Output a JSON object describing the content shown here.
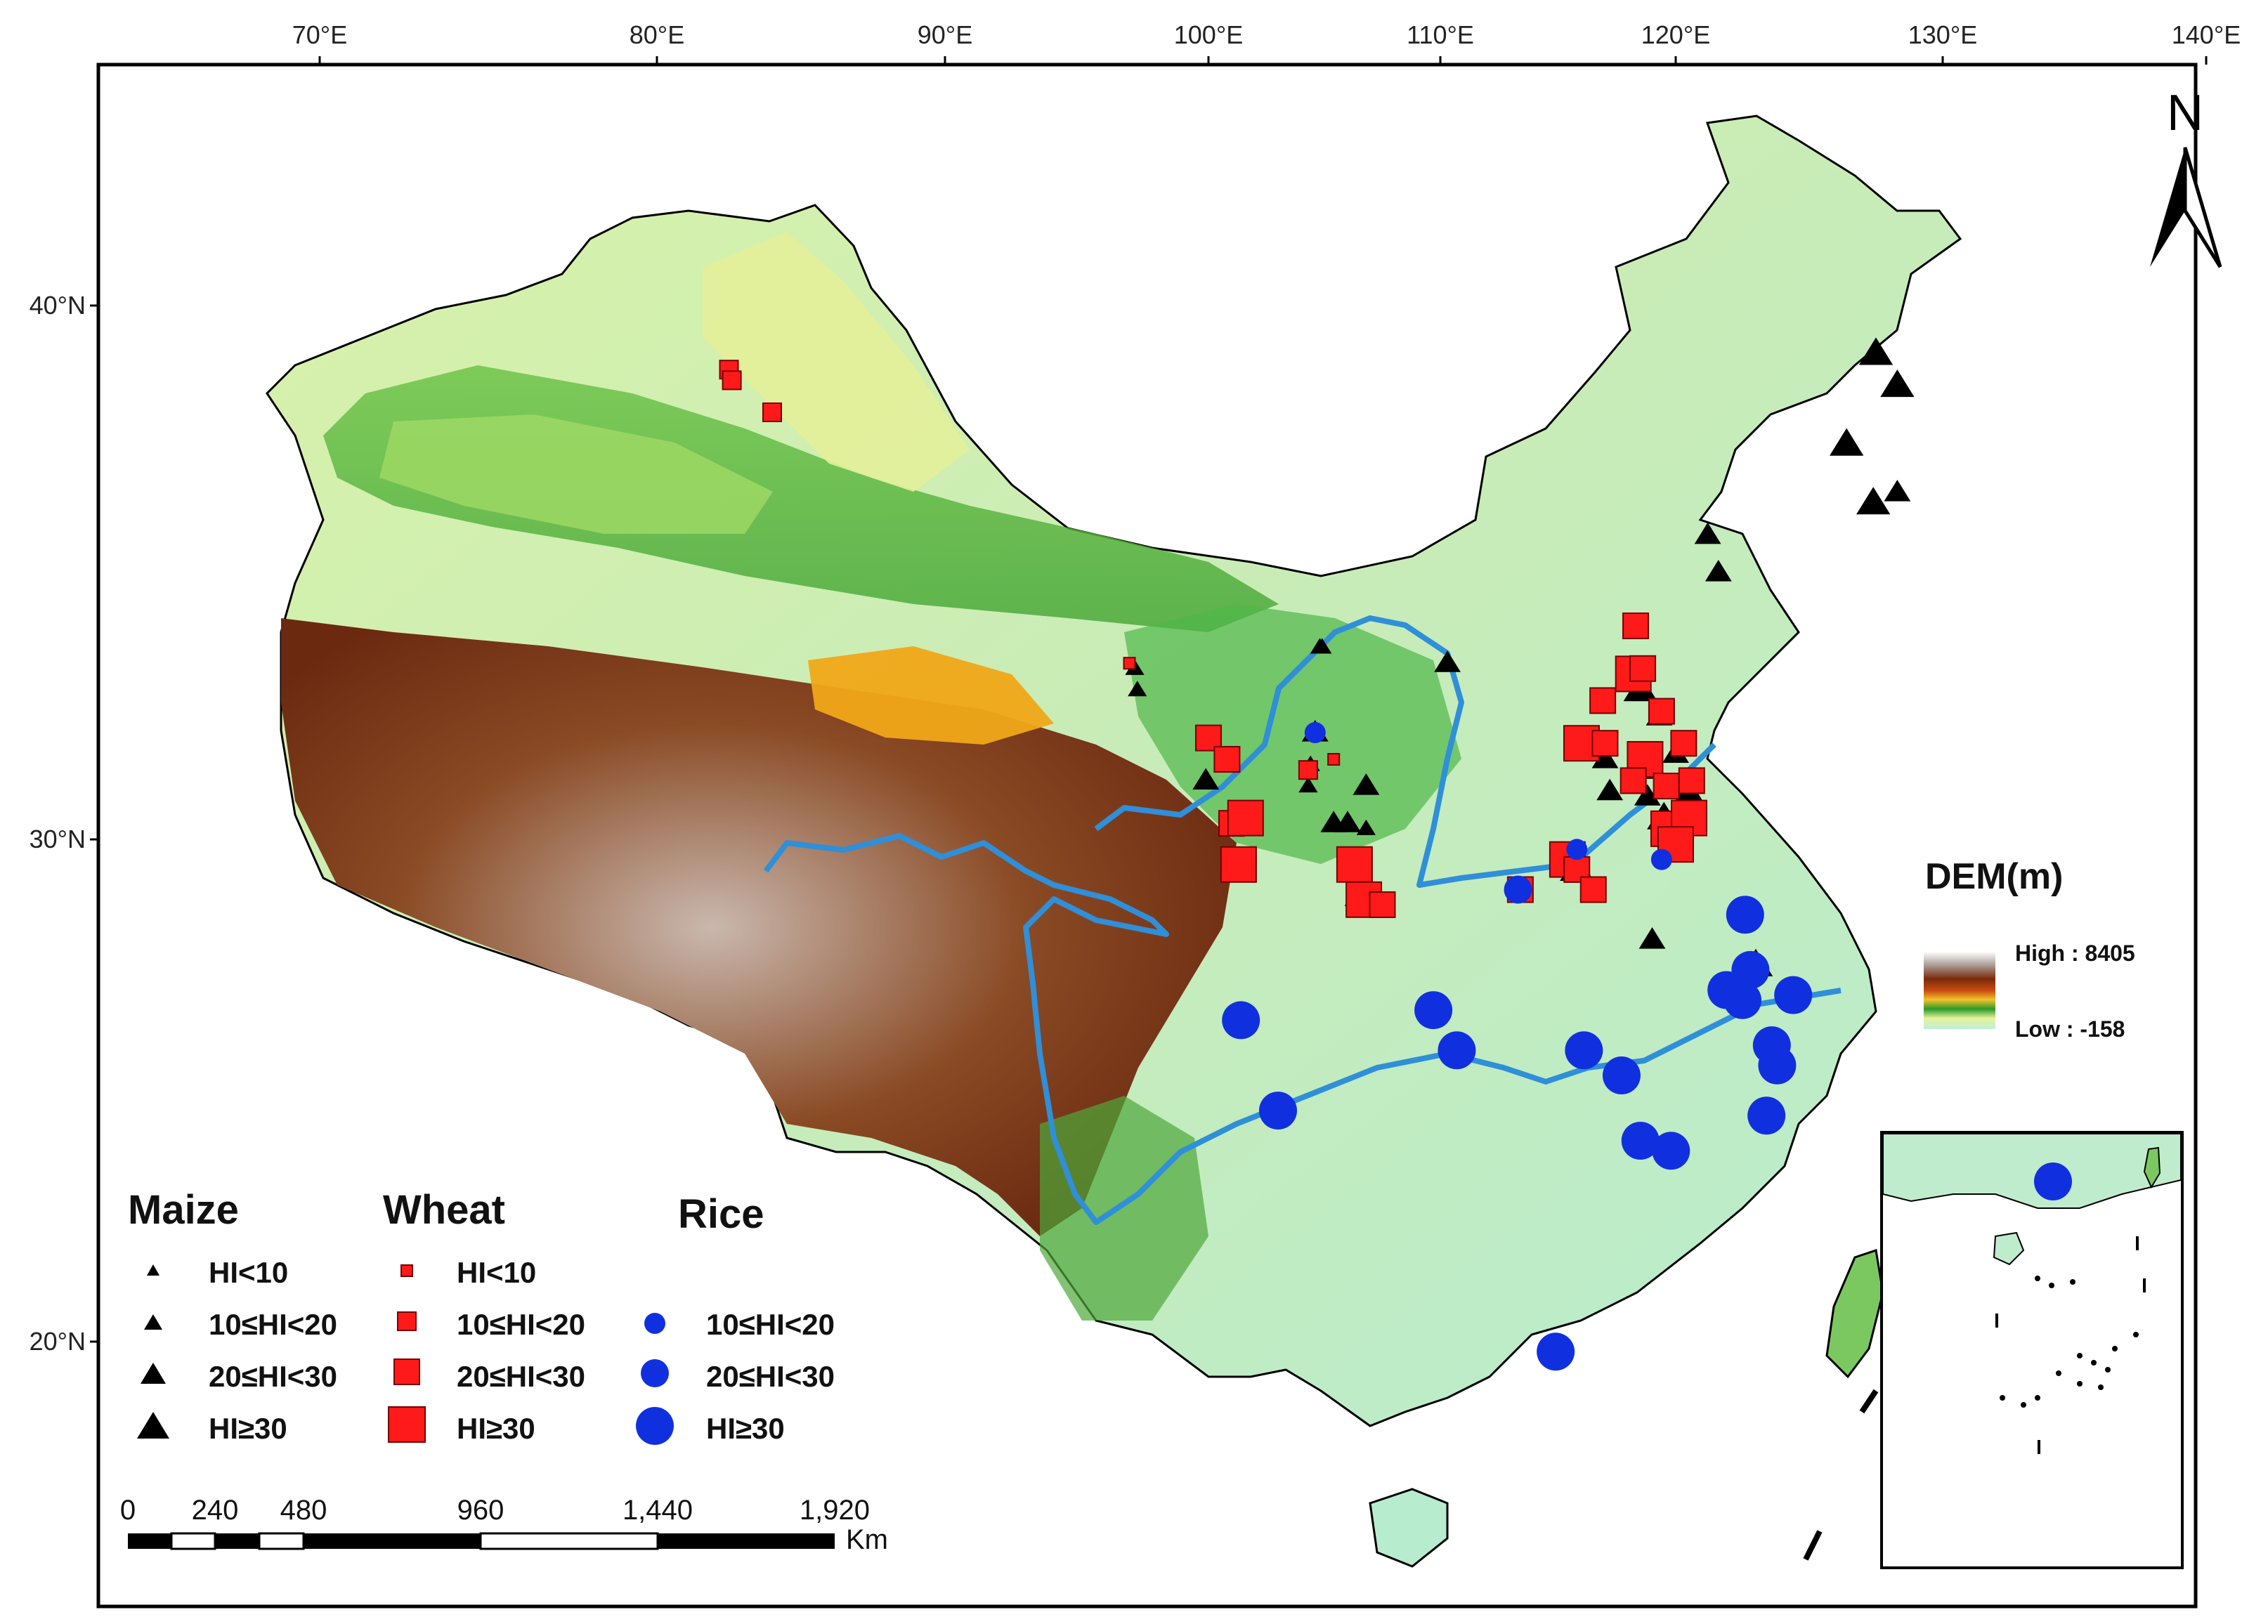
{
  "colors": {
    "maize": "#000000",
    "wheat": "#ff1a1a",
    "rice": "#1030e0",
    "river": "#2f8fd8",
    "dem_low": "#bdf0d8",
    "dem_high": "#ffffff"
  },
  "axes": {
    "longitude_labels": [
      "70°E",
      "80°E",
      "90°E",
      "100°E",
      "110°E",
      "120°E",
      "130°E",
      "140°E"
    ],
    "latitude_labels": [
      "40°N",
      "30°N",
      "20°N"
    ]
  },
  "north_arrow": {
    "label": "N",
    "icon": "north-arrow-icon"
  },
  "dem_legend": {
    "title": "DEM(m)",
    "high_label": "High : 8405",
    "low_label": "Low : -158"
  },
  "legend": {
    "maize": {
      "title": "Maize",
      "items": [
        "HI<10",
        "10≤HI<20",
        "20≤HI<30",
        "HI≥30"
      ]
    },
    "wheat": {
      "title": "Wheat",
      "items": [
        "HI<10",
        "10≤HI<20",
        "20≤HI<30",
        "HI≥30"
      ]
    },
    "rice": {
      "title": "Rice",
      "items": [
        "10≤HI<20",
        "20≤HI<30",
        "HI≥30"
      ]
    }
  },
  "scale_bar": {
    "ticks": [
      "0",
      "240",
      "480",
      "960",
      "1,440",
      "1,920"
    ],
    "unit": "Km"
  },
  "sites": {
    "maize": [
      {
        "lon": 127.5,
        "lat": 39.1,
        "cls": 3
      },
      {
        "lon": 128.3,
        "lat": 38.5,
        "cls": 3
      },
      {
        "lon": 126.4,
        "lat": 37.4,
        "cls": 3
      },
      {
        "lon": 127.4,
        "lat": 36.3,
        "cls": 3
      },
      {
        "lon": 128.3,
        "lat": 36.5,
        "cls": 2
      },
      {
        "lon": 121.2,
        "lat": 35.7,
        "cls": 2
      },
      {
        "lon": 121.6,
        "lat": 35.0,
        "cls": 2
      },
      {
        "lon": 110.3,
        "lat": 33.3,
        "cls": 2
      },
      {
        "lon": 118.5,
        "lat": 32.8,
        "cls": 3
      },
      {
        "lon": 119.3,
        "lat": 32.3,
        "cls": 2
      },
      {
        "lon": 117.0,
        "lat": 31.5,
        "cls": 2
      },
      {
        "lon": 118.5,
        "lat": 31.3,
        "cls": 2
      },
      {
        "lon": 120.0,
        "lat": 31.6,
        "cls": 2
      },
      {
        "lon": 117.2,
        "lat": 30.9,
        "cls": 2
      },
      {
        "lon": 118.8,
        "lat": 30.8,
        "cls": 2
      },
      {
        "lon": 120.5,
        "lat": 30.9,
        "cls": 2
      },
      {
        "lon": 119.5,
        "lat": 30.4,
        "cls": 3
      },
      {
        "lon": 104.6,
        "lat": 32.0,
        "cls": 2
      },
      {
        "lon": 104.4,
        "lat": 31.4,
        "cls": 1
      },
      {
        "lon": 104.3,
        "lat": 31.0,
        "cls": 1
      },
      {
        "lon": 106.8,
        "lat": 31.0,
        "cls": 2
      },
      {
        "lon": 99.9,
        "lat": 31.1,
        "cls": 2
      },
      {
        "lon": 101.9,
        "lat": 30.2,
        "cls": 1
      },
      {
        "lon": 105.4,
        "lat": 30.3,
        "cls": 2
      },
      {
        "lon": 106.0,
        "lat": 30.3,
        "cls": 2
      },
      {
        "lon": 106.8,
        "lat": 30.2,
        "cls": 1
      },
      {
        "lon": 106.6,
        "lat": 28.9,
        "cls": 3
      },
      {
        "lon": 107.0,
        "lat": 28.9,
        "cls": 3
      },
      {
        "lon": 97.2,
        "lat": 33.2,
        "cls": 1
      },
      {
        "lon": 97.3,
        "lat": 32.8,
        "cls": 1
      },
      {
        "lon": 104.8,
        "lat": 33.6,
        "cls": 1
      },
      {
        "lon": 104.9,
        "lat": 33.6,
        "cls": 1
      },
      {
        "lon": 115.8,
        "lat": 29.4,
        "cls": 3
      },
      {
        "lon": 119.0,
        "lat": 28.0,
        "cls": 2
      },
      {
        "lon": 123.0,
        "lat": 27.5,
        "cls": 3
      }
    ],
    "wheat": [
      {
        "lon": 82.5,
        "lat": 38.8,
        "cls": 1
      },
      {
        "lon": 82.6,
        "lat": 38.6,
        "cls": 1
      },
      {
        "lon": 84.0,
        "lat": 38.0,
        "cls": 1
      },
      {
        "lon": 97.0,
        "lat": 33.3,
        "cls": 0
      },
      {
        "lon": 118.3,
        "lat": 34.0,
        "cls": 2
      },
      {
        "lon": 118.2,
        "lat": 33.1,
        "cls": 3
      },
      {
        "lon": 118.6,
        "lat": 33.2,
        "cls": 2
      },
      {
        "lon": 116.9,
        "lat": 32.6,
        "cls": 2
      },
      {
        "lon": 119.4,
        "lat": 32.4,
        "cls": 2
      },
      {
        "lon": 116.0,
        "lat": 31.8,
        "cls": 3
      },
      {
        "lon": 117.0,
        "lat": 31.8,
        "cls": 2
      },
      {
        "lon": 118.7,
        "lat": 31.5,
        "cls": 3
      },
      {
        "lon": 120.3,
        "lat": 31.8,
        "cls": 2
      },
      {
        "lon": 118.2,
        "lat": 31.1,
        "cls": 2
      },
      {
        "lon": 119.6,
        "lat": 31.0,
        "cls": 2
      },
      {
        "lon": 120.6,
        "lat": 31.1,
        "cls": 2
      },
      {
        "lon": 119.7,
        "lat": 30.2,
        "cls": 3
      },
      {
        "lon": 120.5,
        "lat": 30.4,
        "cls": 3
      },
      {
        "lon": 120.0,
        "lat": 29.9,
        "cls": 3
      },
      {
        "lon": 115.4,
        "lat": 29.6,
        "cls": 3
      },
      {
        "lon": 115.8,
        "lat": 29.4,
        "cls": 2
      },
      {
        "lon": 116.5,
        "lat": 29.0,
        "cls": 2
      },
      {
        "lon": 113.4,
        "lat": 29.0,
        "cls": 2
      },
      {
        "lon": 100.0,
        "lat": 31.9,
        "cls": 2
      },
      {
        "lon": 100.8,
        "lat": 31.5,
        "cls": 2
      },
      {
        "lon": 101.0,
        "lat": 30.3,
        "cls": 2
      },
      {
        "lon": 101.6,
        "lat": 30.4,
        "cls": 3
      },
      {
        "lon": 101.3,
        "lat": 29.5,
        "cls": 3
      },
      {
        "lon": 104.3,
        "lat": 31.3,
        "cls": 1
      },
      {
        "lon": 105.4,
        "lat": 31.5,
        "cls": 0
      },
      {
        "lon": 106.3,
        "lat": 29.5,
        "cls": 3
      },
      {
        "lon": 106.7,
        "lat": 28.8,
        "cls": 3
      },
      {
        "lon": 107.5,
        "lat": 28.7,
        "cls": 2
      },
      {
        "lon": 122.0,
        "lat": 27.0,
        "cls": 2
      }
    ],
    "rice": [
      {
        "lon": 104.6,
        "lat": 32.0,
        "cls": 1
      },
      {
        "lon": 115.8,
        "lat": 29.8,
        "cls": 1
      },
      {
        "lon": 119.4,
        "lat": 29.6,
        "cls": 1
      },
      {
        "lon": 113.3,
        "lat": 29.0,
        "cls": 2
      },
      {
        "lon": 122.6,
        "lat": 28.5,
        "cls": 3
      },
      {
        "lon": 122.8,
        "lat": 27.4,
        "cls": 3
      },
      {
        "lon": 121.9,
        "lat": 27.0,
        "cls": 3
      },
      {
        "lon": 122.5,
        "lat": 26.8,
        "cls": 3
      },
      {
        "lon": 124.4,
        "lat": 26.9,
        "cls": 3
      },
      {
        "lon": 101.4,
        "lat": 26.4,
        "cls": 3
      },
      {
        "lon": 109.7,
        "lat": 26.6,
        "cls": 3
      },
      {
        "lon": 110.7,
        "lat": 25.8,
        "cls": 3
      },
      {
        "lon": 116.1,
        "lat": 25.8,
        "cls": 3
      },
      {
        "lon": 117.7,
        "lat": 25.3,
        "cls": 3
      },
      {
        "lon": 123.6,
        "lat": 25.9,
        "cls": 3
      },
      {
        "lon": 123.8,
        "lat": 25.5,
        "cls": 3
      },
      {
        "lon": 103.0,
        "lat": 24.6,
        "cls": 3
      },
      {
        "lon": 123.4,
        "lat": 24.5,
        "cls": 3
      },
      {
        "lon": 118.5,
        "lat": 24.0,
        "cls": 3
      },
      {
        "lon": 119.8,
        "lat": 23.8,
        "cls": 3
      },
      {
        "lon": 114.9,
        "lat": 19.8,
        "cls": 3
      }
    ],
    "inset_rice": [
      {
        "lon": 113.6,
        "lat": 22.6,
        "cls": 3
      }
    ]
  }
}
